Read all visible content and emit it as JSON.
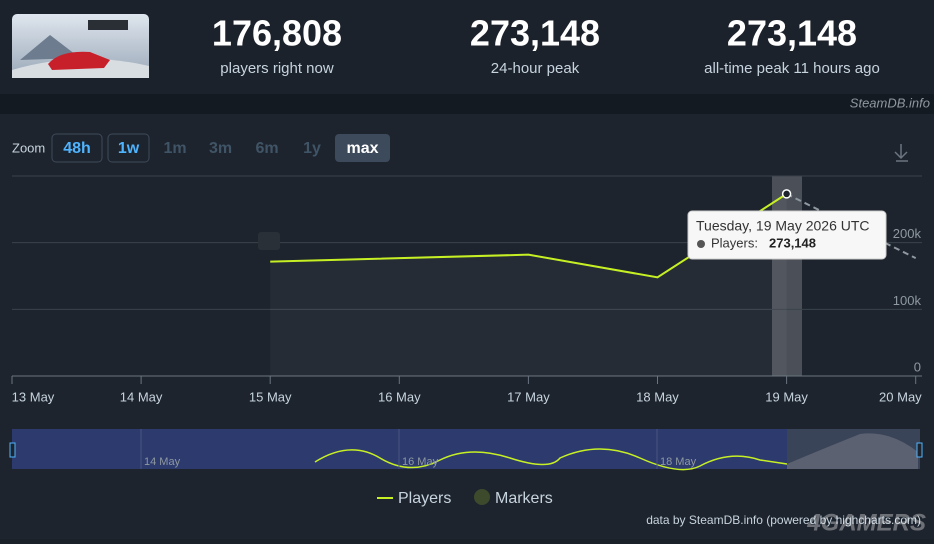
{
  "stats": [
    {
      "value": {
        "value": 176808,
        "label": "176,808"
      },
      "label": "players right now"
    },
    {
      "value": {
        "value": 273148,
        "label": "273,148"
      },
      "label": "24-hour peak"
    },
    {
      "value": {
        "value": 273148,
        "label": "273,148"
      },
      "label": "all-time peak 11 hours ago"
    }
  ],
  "source": "SteamDB.info",
  "zoom": {
    "label": "Zoom",
    "buttons": [
      "48h",
      "1w",
      "1m",
      "3m",
      "6m",
      "1y",
      "max"
    ]
  },
  "chart_data": {
    "type": "line",
    "categories": [
      "13 May",
      "14 May",
      "15 May",
      "16 May",
      "17 May",
      "18 May",
      "19 May",
      "20 May"
    ],
    "series": [
      {
        "name": "Players",
        "color": "#c7f024",
        "x": [
          "15 May",
          "17 May",
          "18 May",
          "19 May"
        ],
        "values": [
          171600,
          182000,
          148000,
          273148
        ]
      }
    ],
    "markers": {
      "name": "Markers",
      "color": "#3e4a2c"
    },
    "ylim": [
      0,
      300000
    ],
    "yticks": [
      0,
      {
        "value": 100000,
        "label": "100k"
      },
      {
        "value": 200000,
        "label": "200k"
      }
    ],
    "grid": true,
    "tooltip": {
      "title": "Tuesday, 19 May 2026 UTC",
      "label": "Players:",
      "value": "273,148"
    },
    "navigator": [
      "14 May",
      "16 May",
      "18 May"
    ]
  },
  "footer": "data by SteamDB.info (powered by highcharts.com)",
  "watermark": "4GAMERS"
}
